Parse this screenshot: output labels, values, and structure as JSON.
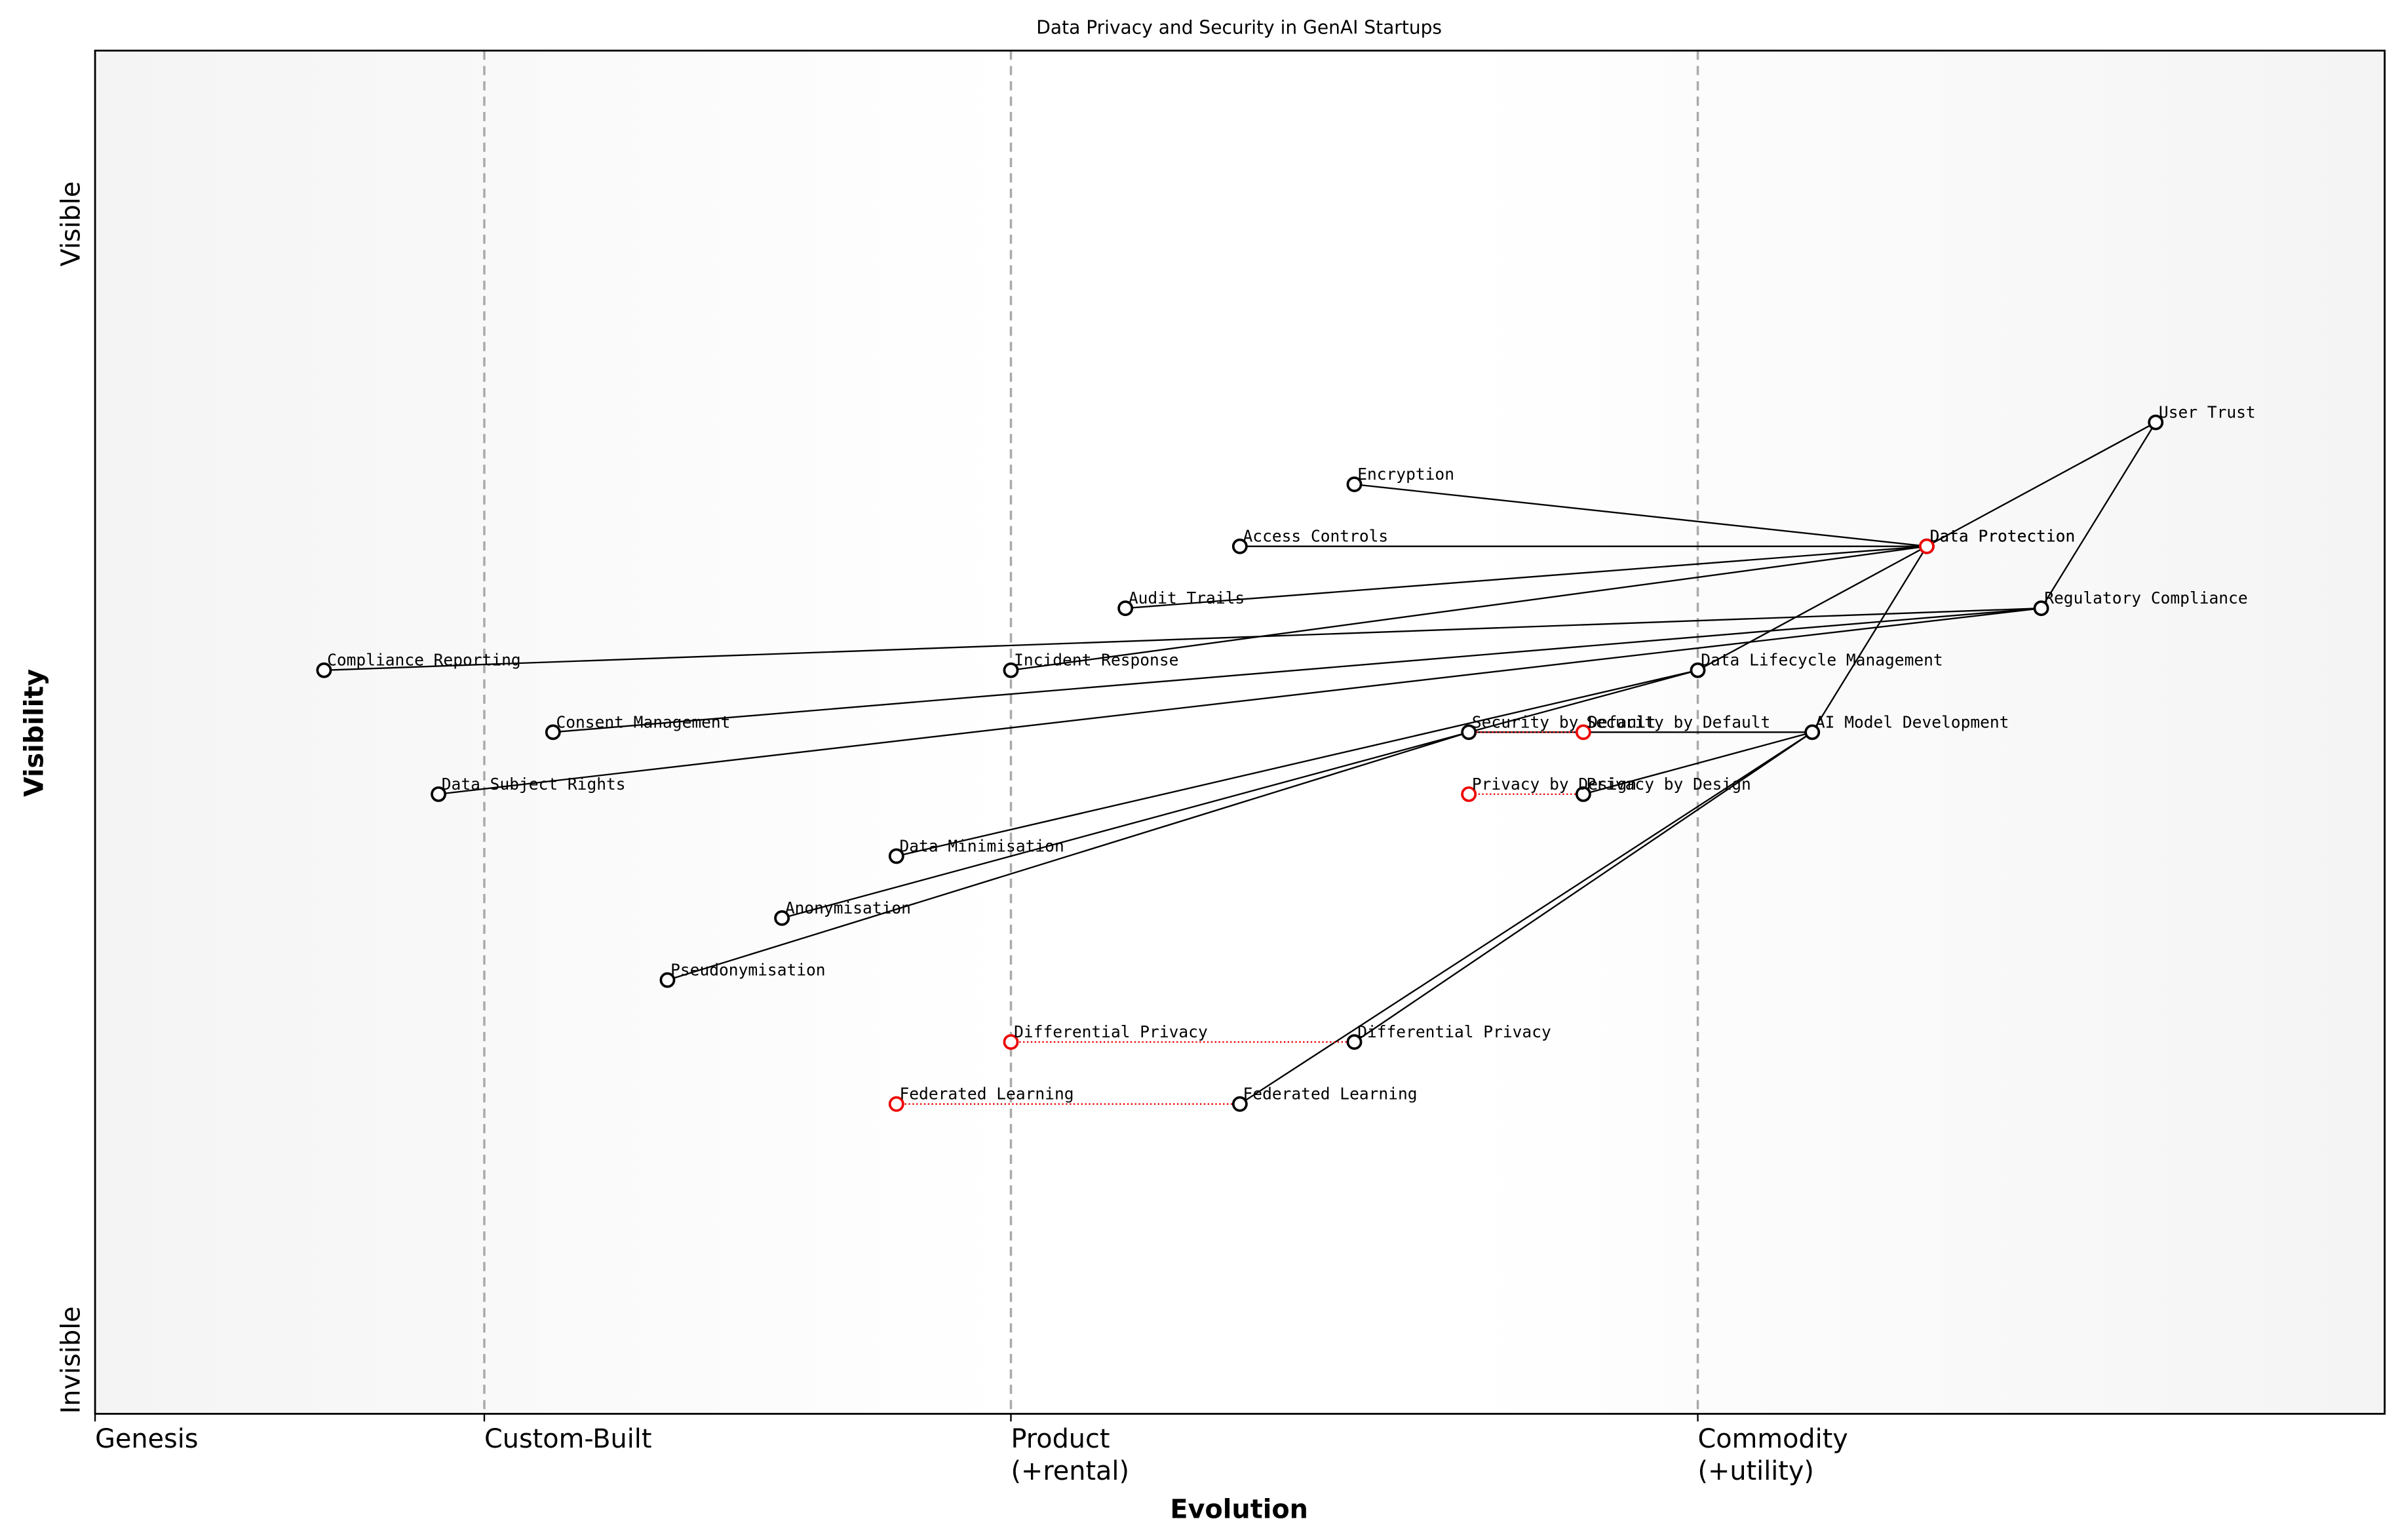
{
  "chart_data": {
    "type": "wardley",
    "title": "Data Privacy and Security in GenAI Startups",
    "x_label": "Evolution",
    "y_label": "Visibility",
    "y_top_label": "Visible",
    "y_bottom_label": "Invisible",
    "xlim": [
      0,
      1
    ],
    "ylim": [
      -0.05,
      1.05
    ],
    "stages": [
      {
        "x": 0,
        "label": "Genesis"
      },
      {
        "x": 0.17,
        "label": "Custom-Built"
      },
      {
        "x": 0.4,
        "label": "Product\n(+rental)"
      },
      {
        "x": 0.7,
        "label": "Commodity\n(+utility)"
      }
    ],
    "components": [
      {
        "name": "User Trust",
        "x": 0.9,
        "y": 0.75
      },
      {
        "name": "Data Protection",
        "x": 0.8,
        "y": 0.65
      },
      {
        "name": "Regulatory Compliance",
        "x": 0.85,
        "y": 0.6
      },
      {
        "name": "Encryption",
        "x": 0.55,
        "y": 0.7
      },
      {
        "name": "Access Controls",
        "x": 0.5,
        "y": 0.65
      },
      {
        "name": "Audit Trails",
        "x": 0.45,
        "y": 0.6
      },
      {
        "name": "Compliance Reporting",
        "x": 0.1,
        "y": 0.55
      },
      {
        "name": "Incident Response",
        "x": 0.4,
        "y": 0.55
      },
      {
        "name": "Data Lifecycle Management",
        "x": 0.7,
        "y": 0.55
      },
      {
        "name": "Consent Management",
        "x": 0.2,
        "y": 0.5
      },
      {
        "name": "Security by Default",
        "x": 0.6,
        "y": 0.5
      },
      {
        "name": "AI Model Development",
        "x": 0.75,
        "y": 0.5
      },
      {
        "name": "Data Subject Rights",
        "x": 0.15,
        "y": 0.45
      },
      {
        "name": "Privacy by Design",
        "x": 0.65,
        "y": 0.45
      },
      {
        "name": "Data Minimisation",
        "x": 0.35,
        "y": 0.4
      },
      {
        "name": "Anonymisation",
        "x": 0.3,
        "y": 0.35
      },
      {
        "name": "Pseudonymisation",
        "x": 0.25,
        "y": 0.3
      },
      {
        "name": "Differential Privacy",
        "x": 0.55,
        "y": 0.25
      },
      {
        "name": "Federated Learning",
        "x": 0.5,
        "y": 0.2
      }
    ],
    "links": [
      [
        0,
        1
      ],
      [
        0,
        2
      ],
      [
        1,
        3
      ],
      [
        1,
        4
      ],
      [
        1,
        5
      ],
      [
        1,
        7
      ],
      [
        1,
        8
      ],
      [
        1,
        11
      ],
      [
        2,
        6
      ],
      [
        2,
        9
      ],
      [
        2,
        12
      ],
      [
        8,
        14
      ],
      [
        8,
        10
      ],
      [
        10,
        15
      ],
      [
        10,
        16
      ],
      [
        11,
        10
      ],
      [
        11,
        13
      ],
      [
        11,
        17
      ],
      [
        11,
        18
      ]
    ],
    "evolutions": [
      {
        "component": 1,
        "name": "Data Protection",
        "x": 0.8
      },
      {
        "component": 10,
        "name": "Security by Default",
        "x": 0.65
      },
      {
        "component": 13,
        "name": "Privacy by Design",
        "x": 0.6
      },
      {
        "component": 17,
        "name": "Differential Privacy",
        "x": 0.4
      },
      {
        "component": 18,
        "name": "Federated Learning",
        "x": 0.35
      }
    ]
  }
}
